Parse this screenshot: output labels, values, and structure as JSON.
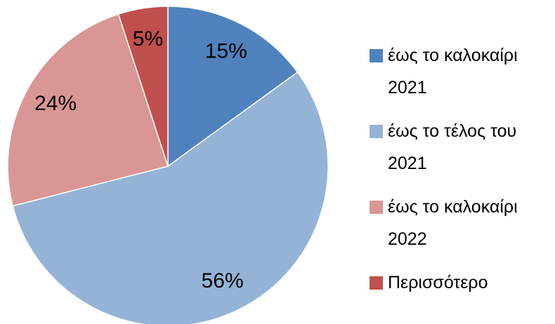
{
  "chart_data": {
    "type": "pie",
    "categories": [
      "έως το καλοκαίρι 2021",
      "έως το τέλος του 2021",
      "έως το καλοκαίρι 2022",
      "Περισσότερο"
    ],
    "values": [
      15,
      56,
      24,
      5
    ],
    "value_labels": [
      "15%",
      "56%",
      "24%",
      "5%"
    ],
    "colors": [
      "#4f81bd",
      "#95b3d7",
      "#d99694",
      "#c0504d"
    ],
    "legend": "right"
  }
}
